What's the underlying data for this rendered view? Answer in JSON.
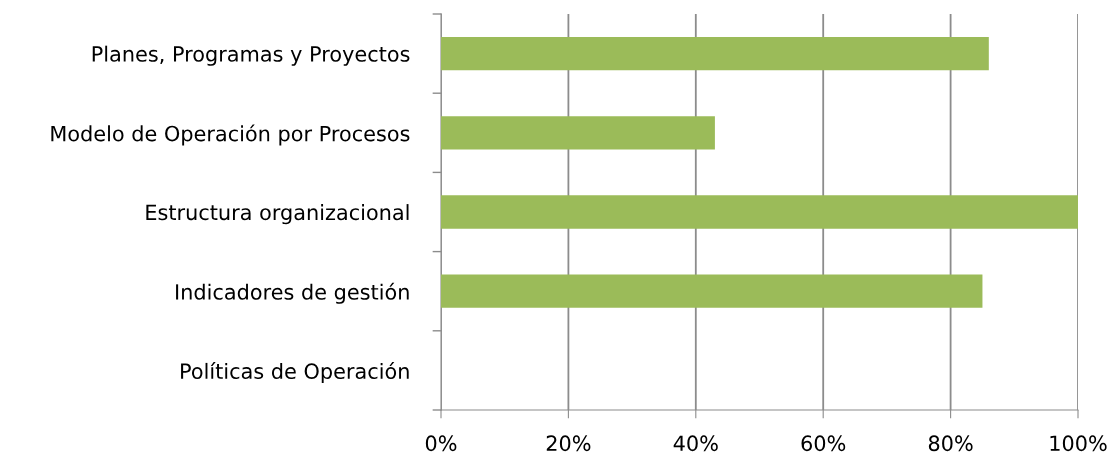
{
  "chart_data": {
    "type": "bar",
    "orientation": "horizontal",
    "categories": [
      "Planes, Programas y Proyectos",
      "Modelo de Operación por Procesos",
      "Estructura organizacional",
      "Indicadores de gestión",
      "Políticas de Operación"
    ],
    "values": [
      86,
      43,
      100,
      85,
      0
    ],
    "color": "#9bbb59",
    "xlim": [
      0,
      100
    ],
    "xticks": [
      {
        "value": 0,
        "label": "0%"
      },
      {
        "value": 20,
        "label": "20%"
      },
      {
        "value": 40,
        "label": "40%"
      },
      {
        "value": 60,
        "label": "60%"
      },
      {
        "value": 80,
        "label": "80%"
      },
      {
        "value": 100,
        "label": "100%"
      }
    ],
    "grid": "x",
    "legend": false
  }
}
